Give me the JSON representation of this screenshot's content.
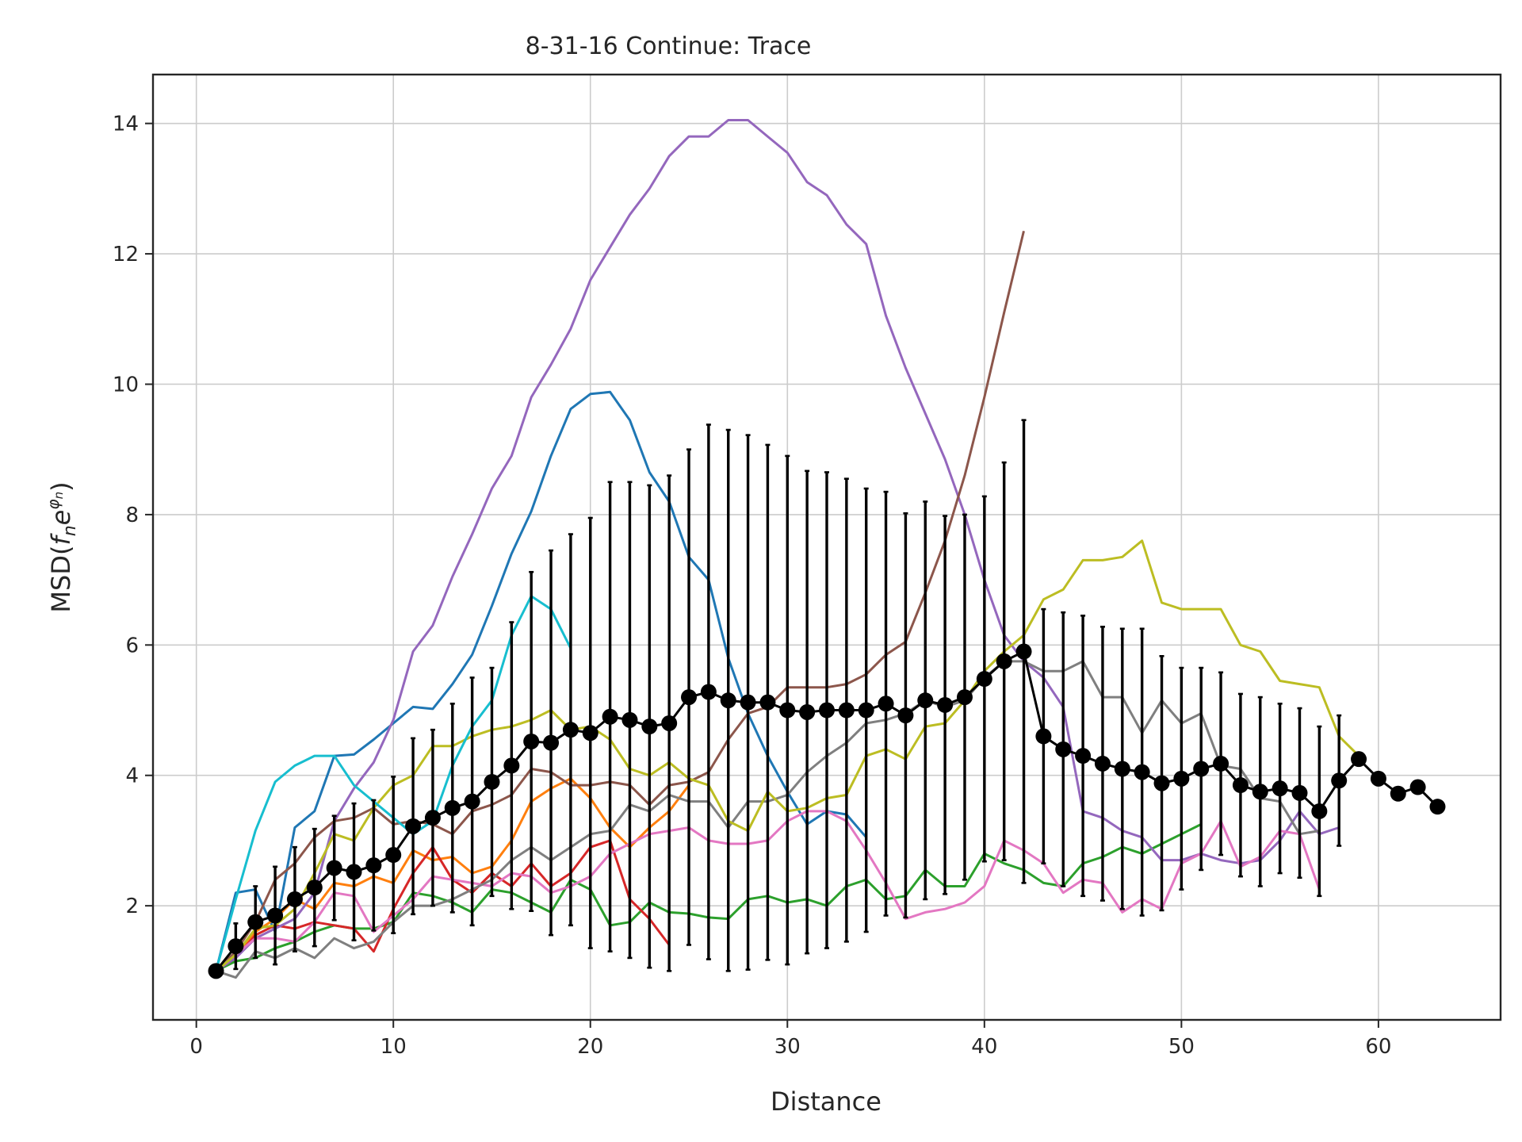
{
  "chart_data": {
    "type": "line",
    "title": "8-31-16 Continue: Trace",
    "xlabel": "Distance",
    "ylabel_prefix": "MSD(",
    "ylabel_main": "f",
    "ylabel_sub": "n",
    "ylabel_e": "e",
    "ylabel_sup": "φ",
    "ylabel_supsub": "n",
    "ylabel_suffix": ")",
    "xlim": [
      -2.2,
      66.2
    ],
    "ylim": [
      0.25,
      14.75
    ],
    "xticks": [
      0,
      10,
      20,
      30,
      40,
      50,
      60
    ],
    "yticks": [
      2,
      4,
      6,
      8,
      10,
      12,
      14
    ],
    "grid": true,
    "legend": false,
    "series": [
      {
        "color": "#1f77b4",
        "x": [
          1,
          2,
          3,
          4,
          5,
          6,
          7,
          8,
          9,
          10,
          11,
          12,
          13,
          14,
          15,
          16,
          17,
          18,
          19,
          20,
          21,
          22,
          23,
          24,
          25,
          26,
          27,
          28,
          29,
          30,
          31,
          32,
          33,
          34
        ],
        "y": [
          1.0,
          2.2,
          2.25,
          1.6,
          3.2,
          3.45,
          4.3,
          4.32,
          4.55,
          4.8,
          5.05,
          5.02,
          5.4,
          5.85,
          6.6,
          7.4,
          8.05,
          8.9,
          9.62,
          9.85,
          9.88,
          9.45,
          8.65,
          8.2,
          7.35,
          7.0,
          5.8,
          4.95,
          4.3,
          3.75,
          3.25,
          3.45,
          3.4,
          3.05
        ]
      },
      {
        "color": "#ff7f0e",
        "x": [
          1,
          2,
          3,
          4,
          5,
          6,
          7,
          8,
          9,
          10,
          11,
          12,
          13,
          14,
          15,
          16,
          17,
          18,
          19,
          20,
          21,
          22,
          23,
          24,
          25
        ],
        "y": [
          1.0,
          1.25,
          1.6,
          1.8,
          2.1,
          1.95,
          2.35,
          2.3,
          2.45,
          2.35,
          2.85,
          2.7,
          2.75,
          2.5,
          2.6,
          3.0,
          3.6,
          3.8,
          3.95,
          3.65,
          3.2,
          2.9,
          3.2,
          3.45,
          3.85
        ]
      },
      {
        "color": "#2ca02c",
        "x": [
          1,
          2,
          3,
          4,
          5,
          6,
          7,
          8,
          9,
          10,
          11,
          12,
          13,
          14,
          15,
          16,
          17,
          18,
          19,
          20,
          21,
          22,
          23,
          24,
          25,
          26,
          27,
          28,
          29,
          30,
          31,
          32,
          33,
          34,
          35,
          36,
          37,
          38,
          39,
          40,
          41,
          42,
          43,
          44,
          45,
          46,
          47,
          48,
          49,
          50,
          51
        ],
        "y": [
          1.0,
          1.15,
          1.2,
          1.35,
          1.45,
          1.6,
          1.7,
          1.65,
          1.65,
          1.75,
          2.2,
          2.15,
          2.05,
          1.9,
          2.25,
          2.2,
          2.05,
          1.9,
          2.4,
          2.25,
          1.7,
          1.75,
          2.05,
          1.9,
          1.88,
          1.82,
          1.8,
          2.1,
          2.15,
          2.05,
          2.1,
          2.0,
          2.3,
          2.4,
          2.1,
          2.15,
          2.55,
          2.3,
          2.3,
          2.8,
          2.65,
          2.55,
          2.35,
          2.3,
          2.65,
          2.75,
          2.9,
          2.8,
          2.95,
          3.1,
          3.25
        ]
      },
      {
        "color": "#d62728",
        "x": [
          1,
          2,
          3,
          4,
          5,
          6,
          7,
          8,
          9,
          10,
          11,
          12,
          13,
          14,
          15,
          16,
          17,
          18,
          19,
          20,
          21,
          22,
          23,
          24
        ],
        "y": [
          1.0,
          1.2,
          1.55,
          1.7,
          1.65,
          1.75,
          1.7,
          1.65,
          1.3,
          1.95,
          2.5,
          2.9,
          2.4,
          2.2,
          2.5,
          2.3,
          2.65,
          2.3,
          2.5,
          2.9,
          3.0,
          2.1,
          1.8,
          1.4
        ]
      },
      {
        "color": "#9467bd",
        "x": [
          1,
          2,
          3,
          4,
          5,
          6,
          7,
          8,
          9,
          10,
          11,
          12,
          13,
          14,
          15,
          16,
          17,
          18,
          19,
          20,
          21,
          22,
          23,
          24,
          25,
          26,
          27,
          28,
          29,
          30,
          31,
          32,
          33,
          34,
          35,
          36,
          37,
          38,
          39,
          40,
          41,
          42,
          43,
          44,
          45,
          46,
          47,
          48,
          49,
          50,
          51,
          52,
          53,
          54,
          55,
          56,
          57,
          58
        ],
        "y": [
          1.0,
          1.2,
          1.5,
          1.65,
          1.8,
          2.2,
          3.3,
          3.8,
          4.2,
          4.85,
          5.9,
          6.3,
          7.05,
          7.7,
          8.4,
          8.9,
          9.8,
          10.3,
          10.85,
          11.6,
          12.1,
          12.6,
          13.0,
          13.5,
          13.8,
          13.8,
          14.05,
          14.05,
          13.8,
          13.55,
          13.1,
          12.9,
          12.45,
          12.15,
          11.05,
          10.25,
          9.55,
          8.85,
          8.0,
          7.0,
          6.15,
          5.75,
          5.5,
          5.05,
          3.45,
          3.35,
          3.15,
          3.05,
          2.7,
          2.7,
          2.8,
          2.7,
          2.65,
          2.7,
          3.0,
          3.45,
          3.1,
          3.2
        ]
      },
      {
        "color": "#8c564b",
        "x": [
          1,
          2,
          3,
          4,
          5,
          6,
          7,
          8,
          9,
          10,
          11,
          12,
          13,
          14,
          15,
          16,
          17,
          18,
          19,
          20,
          21,
          22,
          23,
          24,
          25,
          26,
          27,
          28,
          29,
          30,
          31,
          32,
          33,
          34,
          35,
          36,
          37,
          38,
          39,
          40,
          41,
          42
        ],
        "y": [
          1.0,
          1.3,
          1.75,
          2.4,
          2.65,
          3.05,
          3.3,
          3.35,
          3.5,
          3.25,
          3.3,
          3.25,
          3.1,
          3.45,
          3.55,
          3.7,
          4.1,
          4.05,
          3.85,
          3.85,
          3.9,
          3.85,
          3.55,
          3.85,
          3.9,
          4.05,
          4.55,
          4.95,
          5.05,
          5.35,
          5.35,
          5.35,
          5.4,
          5.55,
          5.85,
          6.05,
          6.8,
          7.6,
          8.6,
          9.8,
          11.1,
          12.35
        ]
      },
      {
        "color": "#e377c2",
        "x": [
          1,
          2,
          3,
          4,
          5,
          6,
          7,
          8,
          9,
          10,
          11,
          12,
          13,
          14,
          15,
          16,
          17,
          18,
          19,
          20,
          21,
          22,
          23,
          24,
          25,
          26,
          27,
          28,
          29,
          30,
          31,
          32,
          33,
          34,
          35,
          36,
          37,
          38,
          39,
          40,
          41,
          42,
          43,
          44,
          45,
          46,
          47,
          48,
          49,
          50,
          51,
          52,
          53,
          54,
          55,
          56,
          57
        ],
        "y": [
          1.0,
          1.25,
          1.5,
          1.5,
          1.45,
          1.75,
          2.2,
          2.15,
          1.6,
          1.85,
          2.1,
          2.45,
          2.4,
          2.35,
          2.3,
          2.5,
          2.45,
          2.2,
          2.3,
          2.45,
          2.8,
          2.95,
          3.1,
          3.15,
          3.2,
          3.0,
          2.95,
          2.95,
          3.0,
          3.3,
          3.45,
          3.45,
          3.3,
          2.85,
          2.35,
          1.8,
          1.9,
          1.95,
          2.05,
          2.3,
          3.0,
          2.85,
          2.65,
          2.2,
          2.4,
          2.35,
          1.9,
          2.1,
          1.95,
          2.65,
          2.8,
          3.3,
          2.6,
          2.75,
          3.15,
          3.1,
          2.25
        ]
      },
      {
        "color": "#7f7f7f",
        "x": [
          1,
          2,
          3,
          4,
          5,
          6,
          7,
          8,
          9,
          10,
          11,
          12,
          13,
          14,
          15,
          16,
          17,
          18,
          19,
          20,
          21,
          22,
          23,
          24,
          25,
          26,
          27,
          28,
          29,
          30,
          31,
          32,
          33,
          34,
          35,
          36,
          37,
          38,
          39,
          40,
          41,
          42,
          43,
          44,
          45,
          46,
          47,
          48,
          49,
          50,
          51,
          52,
          53,
          54,
          55,
          56,
          57
        ],
        "y": [
          1.0,
          0.9,
          1.3,
          1.2,
          1.35,
          1.2,
          1.5,
          1.35,
          1.45,
          1.75,
          2.0,
          2.0,
          2.1,
          2.25,
          2.4,
          2.7,
          2.9,
          2.7,
          2.9,
          3.1,
          3.15,
          3.55,
          3.45,
          3.7,
          3.6,
          3.6,
          3.2,
          3.6,
          3.6,
          3.7,
          4.05,
          4.3,
          4.5,
          4.8,
          4.85,
          4.95,
          5.15,
          5.05,
          5.15,
          5.5,
          5.75,
          5.75,
          5.6,
          5.6,
          5.75,
          5.2,
          5.2,
          4.65,
          5.15,
          4.8,
          4.95,
          4.15,
          4.1,
          3.65,
          3.6,
          3.1,
          3.15
        ]
      },
      {
        "color": "#bcbd22",
        "x": [
          1,
          2,
          3,
          4,
          5,
          6,
          7,
          8,
          9,
          10,
          11,
          12,
          13,
          14,
          15,
          16,
          17,
          18,
          19,
          20,
          21,
          22,
          23,
          24,
          25,
          26,
          27,
          28,
          29,
          30,
          31,
          32,
          33,
          34,
          35,
          36,
          37,
          38,
          39,
          40,
          41,
          42,
          43,
          44,
          45,
          46,
          47,
          48,
          49,
          50,
          51,
          52,
          53,
          54,
          55,
          56,
          57,
          58,
          59
        ],
        "y": [
          1.0,
          1.25,
          1.65,
          1.7,
          1.95,
          2.5,
          3.1,
          3.0,
          3.5,
          3.85,
          4.0,
          4.45,
          4.45,
          4.6,
          4.7,
          4.75,
          4.85,
          5.0,
          4.7,
          4.75,
          4.55,
          4.1,
          4.0,
          4.2,
          3.95,
          3.85,
          3.3,
          3.15,
          3.75,
          3.45,
          3.5,
          3.65,
          3.7,
          4.3,
          4.4,
          4.25,
          4.75,
          4.8,
          5.15,
          5.6,
          5.9,
          6.15,
          6.7,
          6.85,
          7.3,
          7.3,
          7.35,
          7.6,
          6.65,
          6.55,
          6.55,
          6.55,
          6.0,
          5.9,
          5.45,
          5.4,
          5.35,
          4.6,
          4.3
        ]
      },
      {
        "color": "#17becf",
        "x": [
          1,
          2,
          3,
          4,
          5,
          6,
          7,
          8,
          9,
          10,
          11,
          12,
          13,
          14,
          15,
          16,
          17,
          18,
          19
        ],
        "y": [
          1.0,
          2.1,
          3.15,
          3.9,
          4.15,
          4.3,
          4.3,
          3.85,
          3.6,
          3.35,
          3.1,
          3.3,
          4.15,
          4.75,
          5.15,
          6.15,
          6.75,
          6.55,
          5.95
        ]
      }
    ],
    "mean": {
      "color": "#000000",
      "x": [
        1,
        2,
        3,
        4,
        5,
        6,
        7,
        8,
        9,
        10,
        11,
        12,
        13,
        14,
        15,
        16,
        17,
        18,
        19,
        20,
        21,
        22,
        23,
        24,
        25,
        26,
        27,
        28,
        29,
        30,
        31,
        32,
        33,
        34,
        35,
        36,
        37,
        38,
        39,
        40,
        41,
        42,
        43,
        44,
        45,
        46,
        47,
        48,
        49,
        50,
        51,
        52,
        53,
        54,
        55,
        56,
        57,
        58,
        59,
        60,
        61,
        62,
        63
      ],
      "y": [
        1.0,
        1.38,
        1.75,
        1.85,
        2.1,
        2.28,
        2.58,
        2.52,
        2.62,
        2.78,
        3.22,
        3.35,
        3.5,
        3.6,
        3.9,
        4.15,
        4.52,
        4.5,
        4.7,
        4.65,
        4.9,
        4.85,
        4.75,
        4.8,
        5.2,
        5.28,
        5.15,
        5.12,
        5.12,
        5.0,
        4.97,
        5.0,
        5.0,
        5.0,
        5.1,
        4.92,
        5.15,
        5.08,
        5.2,
        5.48,
        5.75,
        5.9,
        4.6,
        4.4,
        4.3,
        4.18,
        4.1,
        4.05,
        3.88,
        3.95,
        4.1,
        4.18,
        3.85,
        3.75,
        3.8,
        3.73,
        3.45,
        3.92,
        4.25,
        3.95,
        3.72,
        3.82,
        3.52
      ],
      "err": [
        0,
        0.35,
        0.55,
        0.75,
        0.8,
        0.9,
        0.8,
        1.05,
        1.0,
        1.2,
        1.35,
        1.35,
        1.6,
        1.9,
        1.75,
        2.2,
        2.6,
        2.95,
        3.0,
        3.3,
        3.6,
        3.65,
        3.7,
        3.8,
        3.8,
        4.1,
        4.15,
        4.1,
        3.95,
        3.9,
        3.7,
        3.65,
        3.55,
        3.4,
        3.25,
        3.1,
        3.05,
        2.9,
        2.8,
        2.8,
        3.05,
        3.55,
        1.95,
        2.1,
        2.15,
        2.1,
        2.15,
        2.2,
        1.95,
        1.7,
        1.55,
        1.4,
        1.4,
        1.45,
        1.3,
        1.3,
        1.3,
        1.0,
        0,
        0,
        0,
        0,
        0
      ]
    }
  }
}
